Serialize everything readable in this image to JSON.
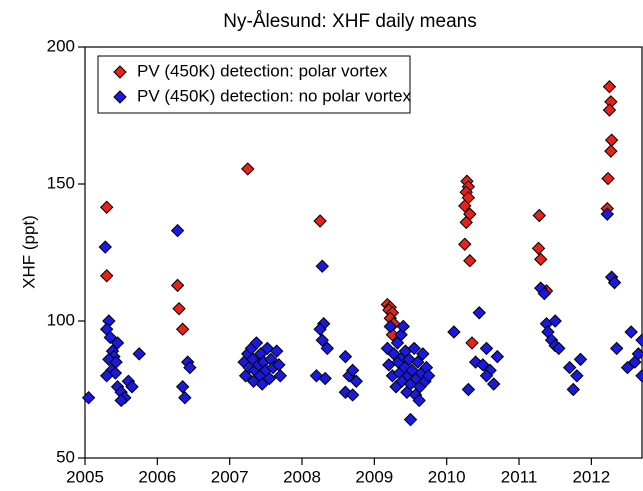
{
  "chart_data": {
    "type": "scatter",
    "title": "Ny-Ålesund: XHF daily means",
    "y_label": "XHF (ppt)",
    "xlim": [
      2005,
      2012.7
    ],
    "xticks": [
      2005,
      2006,
      2007,
      2008,
      2009,
      2010,
      2011,
      2012
    ],
    "ylim": [
      50,
      200
    ],
    "yticks": [
      50,
      100,
      150,
      200
    ],
    "legend": "upper left",
    "series": [
      {
        "name": "PV (450K) detection: polar vortex",
        "color": "#e8211b",
        "x": [
          2005.3,
          2005.3,
          2006.28,
          2006.3,
          2006.35,
          2007.25,
          2008.25,
          2009.18,
          2009.22,
          2009.2,
          2009.25,
          2009.22,
          2009.27,
          2009.25,
          2010.28,
          2010.3,
          2010.27,
          2010.3,
          2010.25,
          2010.32,
          2010.27,
          2010.25,
          2010.32,
          2010.35,
          2011.28,
          2011.27,
          2011.3,
          2011.38,
          2012.25,
          2012.27,
          2012.25,
          2012.28,
          2012.27,
          2012.23,
          2012.22
        ],
        "values": [
          141.5,
          116.5,
          113,
          104.5,
          97,
          155.5,
          136.5,
          106,
          105,
          104,
          103,
          101,
          99,
          95,
          151,
          149,
          147,
          145,
          142,
          139,
          136,
          128,
          122,
          92,
          138.5,
          126.5,
          122.5,
          111,
          185.5,
          180,
          177,
          166,
          162,
          152,
          141
        ]
      },
      {
        "name": "PV (450K) detection: no polar vortex",
        "color": "#1a1adf",
        "x": [
          2005.05,
          2005.28,
          2005.33,
          2005.3,
          2005.35,
          2005.38,
          2005.4,
          2005.33,
          2005.43,
          2005.37,
          2005.42,
          2005.3,
          2005.45,
          2005.5,
          2005.55,
          2005.5,
          2005.6,
          2005.65,
          2005.75,
          2005.45,
          2006.28,
          2006.35,
          2006.38,
          2006.42,
          2006.45,
          2007.2,
          2007.22,
          2007.25,
          2007.27,
          2007.3,
          2007.32,
          2007.33,
          2007.35,
          2007.37,
          2007.4,
          2007.42,
          2007.43,
          2007.45,
          2007.47,
          2007.5,
          2007.52,
          2007.55,
          2007.57,
          2007.6,
          2007.65,
          2007.68,
          2007.7,
          2008.28,
          2008.3,
          2008.25,
          2008.2,
          2008.32,
          2008.28,
          2008.35,
          2008.6,
          2008.65,
          2008.7,
          2008.6,
          2008.7,
          2008.75,
          2009.18,
          2009.2,
          2009.22,
          2009.25,
          2009.27,
          2009.3,
          2009.32,
          2009.33,
          2009.35,
          2009.37,
          2009.38,
          2009.4,
          2009.42,
          2009.43,
          2009.45,
          2009.47,
          2009.48,
          2009.5,
          2009.5,
          2009.52,
          2009.55,
          2009.57,
          2009.58,
          2009.6,
          2009.62,
          2009.63,
          2009.65,
          2009.67,
          2009.7,
          2009.72,
          2009.75,
          2009.4,
          2010.1,
          2010.3,
          2010.4,
          2010.45,
          2010.5,
          2010.55,
          2010.6,
          2010.65,
          2010.7,
          2010.55,
          2011.3,
          2011.35,
          2011.38,
          2011.4,
          2011.45,
          2011.5,
          2011.5,
          2011.55,
          2011.7,
          2011.75,
          2011.8,
          2011.85,
          2012.22,
          2012.28,
          2012.32,
          2012.35,
          2012.5,
          2012.55,
          2012.6,
          2012.65,
          2012.7,
          2012.7
        ],
        "values": [
          72,
          127,
          100,
          97,
          94,
          89,
          87,
          86,
          85,
          82,
          81,
          80,
          76,
          74,
          72,
          71,
          78,
          76,
          88,
          92,
          133,
          76,
          72,
          85,
          83,
          85,
          80,
          88,
          83,
          90,
          86,
          78,
          82,
          92,
          84,
          80,
          88,
          77,
          85,
          82,
          90,
          79,
          86,
          83,
          89,
          84,
          80,
          120,
          99,
          97,
          80,
          79,
          93,
          90,
          87,
          80,
          82,
          74,
          73,
          78,
          90,
          84,
          98,
          80,
          88,
          76,
          92,
          85,
          81,
          95,
          78,
          87,
          83,
          89,
          74,
          80,
          86,
          64,
          77,
          82,
          90,
          73,
          79,
          85,
          71,
          76,
          81,
          88,
          78,
          83,
          80,
          98,
          96,
          75,
          85,
          103,
          84,
          90,
          82,
          77,
          87,
          80,
          112,
          110,
          99,
          96,
          93,
          100,
          91,
          90,
          83,
          75,
          80,
          86,
          139,
          116,
          114,
          90,
          83,
          96,
          85,
          88,
          80,
          93
        ]
      }
    ]
  }
}
